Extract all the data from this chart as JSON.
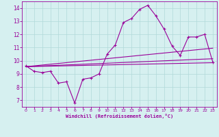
{
  "xlabel": "Windchill (Refroidissement éolien,°C)",
  "bg_color": "#d6f0f0",
  "line_color": "#990099",
  "grid_color": "#b0d8d8",
  "xlim": [
    -0.5,
    23.5
  ],
  "ylim": [
    6.5,
    14.5
  ],
  "xticks": [
    0,
    1,
    2,
    3,
    4,
    5,
    6,
    7,
    8,
    9,
    10,
    11,
    12,
    13,
    14,
    15,
    16,
    17,
    18,
    19,
    20,
    21,
    22,
    23
  ],
  "yticks": [
    7,
    8,
    9,
    10,
    11,
    12,
    13,
    14
  ],
  "line1_x": [
    0,
    1,
    2,
    3,
    4,
    5,
    6,
    7,
    8,
    9,
    10,
    11,
    12,
    13,
    14,
    15,
    16,
    17,
    18,
    19,
    20,
    21,
    22,
    23
  ],
  "line1_y": [
    9.6,
    9.2,
    9.1,
    9.2,
    8.3,
    8.4,
    6.8,
    8.6,
    8.7,
    9.0,
    10.5,
    11.2,
    12.9,
    13.2,
    13.9,
    14.2,
    13.4,
    12.4,
    11.1,
    10.4,
    11.8,
    11.8,
    12.0,
    9.9
  ],
  "line2_x": [
    0,
    23
  ],
  "line2_y": [
    9.55,
    9.85
  ],
  "line3_x": [
    0,
    23
  ],
  "line3_y": [
    9.55,
    10.15
  ],
  "line4_x": [
    0,
    23
  ],
  "line4_y": [
    9.55,
    10.95
  ]
}
